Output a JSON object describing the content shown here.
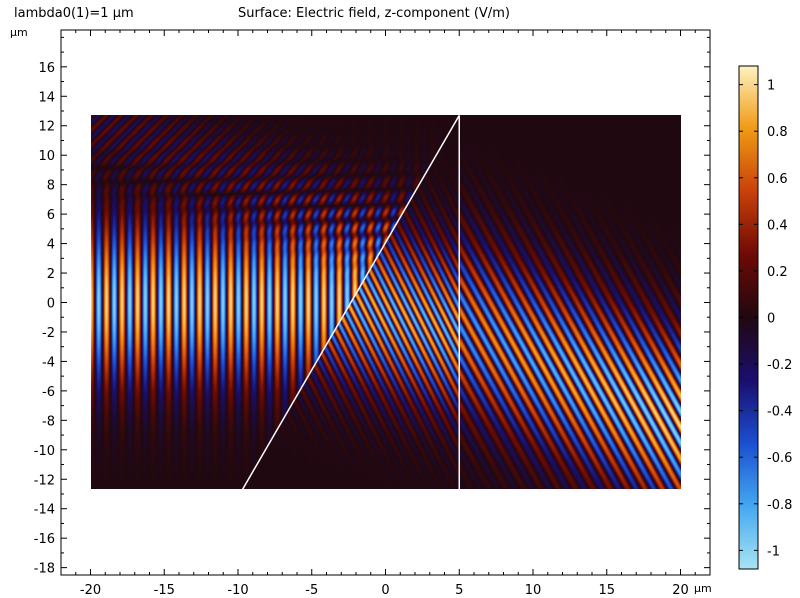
{
  "header": {
    "parameter": "lambda0(1)=1 µm",
    "title": "Surface: Electric field, z-component (V/m)"
  },
  "chart_data": {
    "type": "heatmap",
    "title": "Surface: Electric field, z-component (V/m)",
    "parameter_label": "lambda0(1)=1 µm",
    "x_unit": "µm",
    "y_unit": "µm",
    "xlim": [
      -22,
      22
    ],
    "ylim": [
      -18.5,
      18.5
    ],
    "x_ticks": [
      -20,
      -15,
      -10,
      -5,
      0,
      5,
      10,
      15,
      20
    ],
    "y_ticks": [
      -18,
      -16,
      -14,
      -12,
      -10,
      -8,
      -6,
      -4,
      -2,
      0,
      2,
      4,
      6,
      8,
      10,
      12,
      14,
      16
    ],
    "domain": {
      "x": [
        -20,
        20
      ],
      "y": [
        -12.7,
        12.7
      ]
    },
    "boundaries": [
      {
        "name": "prism-diagonal",
        "from": [
          -9.7,
          -12.7
        ],
        "to": [
          5,
          12.7
        ]
      },
      {
        "name": "prism-right-edge",
        "from": [
          5,
          -12.7
        ],
        "to": [
          5,
          12.7
        ]
      }
    ],
    "field": {
      "wavelength": 1,
      "beam_center_y": 0,
      "beam_width": 5.5,
      "refracted_tilt": 0.5,
      "refracted_decay": 0.09
    },
    "colorbar": {
      "range": [
        -1.08,
        1.08
      ],
      "ticks": [
        1,
        0.8,
        0.6,
        0.4,
        0.2,
        0,
        -0.2,
        -0.4,
        -0.6,
        -0.8,
        -1
      ],
      "tick_labels": [
        "1",
        "0.8",
        "0.6",
        "0.4",
        "0.2",
        "0",
        "-0.2",
        "-0.4",
        "-0.6",
        "-0.8",
        "-1"
      ],
      "colors": [
        "#a8e4f4",
        "#44a8f0",
        "#1b4fd0",
        "#1a0e6e",
        "#200810",
        "#6e0a05",
        "#c8400a",
        "#f09a14",
        "#fff2c0"
      ]
    }
  }
}
